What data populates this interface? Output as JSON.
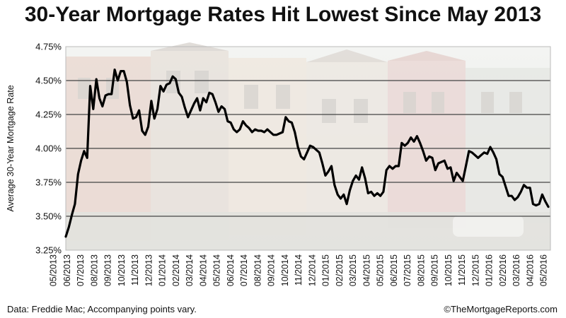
{
  "chart_data": {
    "type": "line",
    "title": "30-Year Mortgage Rates Hit Lowest Since May 2013",
    "ylabel": "Average 30-Year Mortgage Rate",
    "xlabel": "",
    "ylim": [
      3.25,
      4.75
    ],
    "yticks": [
      "3.25%",
      "3.50%",
      "3.75%",
      "4.00%",
      "4.25%",
      "4.50%",
      "4.75%"
    ],
    "xticks": [
      "05/2013",
      "06/2013",
      "07/2013",
      "08/2013",
      "09/2013",
      "10/2013",
      "11/2013",
      "12/2013",
      "01/2014",
      "02/2014",
      "03/2014",
      "04/2014",
      "05/2014",
      "06/2014",
      "07/2014",
      "08/2014",
      "09/2014",
      "10/2014",
      "11/2014",
      "12/2014",
      "01/2015",
      "02/2015",
      "03/2015",
      "04/2015",
      "05/2015",
      "06/2015",
      "07/2015",
      "08/2015",
      "09/2015",
      "10/2015",
      "11/2015",
      "12/2015",
      "01/2016",
      "02/2016",
      "03/2016",
      "04/2016",
      "05/2016"
    ],
    "grid": true,
    "legend": "none",
    "colors": {
      "line": "#000000",
      "grid": "#444444"
    },
    "series": [
      {
        "values": [
          3.35,
          3.42,
          3.51,
          3.59,
          3.81,
          3.91,
          3.98,
          3.93,
          4.46,
          4.29,
          4.51,
          4.37,
          4.31,
          4.39,
          4.4,
          4.4,
          4.58,
          4.5,
          4.57,
          4.57,
          4.49,
          4.32,
          4.22,
          4.23,
          4.28,
          4.13,
          4.1,
          4.16,
          4.35,
          4.22,
          4.29,
          4.46,
          4.42,
          4.47,
          4.48,
          4.53,
          4.51,
          4.41,
          4.38,
          4.3,
          4.23,
          4.28,
          4.33,
          4.37,
          4.28,
          4.37,
          4.34,
          4.41,
          4.4,
          4.34,
          4.27,
          4.31,
          4.29,
          4.2,
          4.19,
          4.14,
          4.12,
          4.14,
          4.2,
          4.17,
          4.15,
          4.12,
          4.14,
          4.13,
          4.13,
          4.12,
          4.14,
          4.12,
          4.1,
          4.1,
          4.11,
          4.12,
          4.23,
          4.2,
          4.19,
          4.12,
          4.01,
          3.94,
          3.92,
          3.97,
          4.02,
          4.01,
          3.99,
          3.97,
          3.89,
          3.8,
          3.83,
          3.87,
          3.73,
          3.66,
          3.63,
          3.66,
          3.59,
          3.69,
          3.76,
          3.8,
          3.77,
          3.86,
          3.78,
          3.67,
          3.68,
          3.65,
          3.67,
          3.65,
          3.68,
          3.84,
          3.87,
          3.85,
          3.87,
          3.87,
          4.04,
          4.02,
          4.04,
          4.08,
          4.05,
          4.09,
          4.04,
          3.98,
          3.91,
          3.94,
          3.93,
          3.84,
          3.89,
          3.9,
          3.91,
          3.85,
          3.86,
          3.76,
          3.82,
          3.79,
          3.76,
          3.87,
          3.98,
          3.97,
          3.95,
          3.93,
          3.95,
          3.97,
          3.96,
          4.01,
          3.97,
          3.92,
          3.81,
          3.79,
          3.72,
          3.65,
          3.65,
          3.62,
          3.64,
          3.68,
          3.73,
          3.71,
          3.71,
          3.59,
          3.58,
          3.59,
          3.66,
          3.61,
          3.57
        ]
      }
    ]
  },
  "footer": {
    "source": "Data: Freddie Mac; Accompanying points vary.",
    "credit": "©TheMortgageReports.com"
  }
}
